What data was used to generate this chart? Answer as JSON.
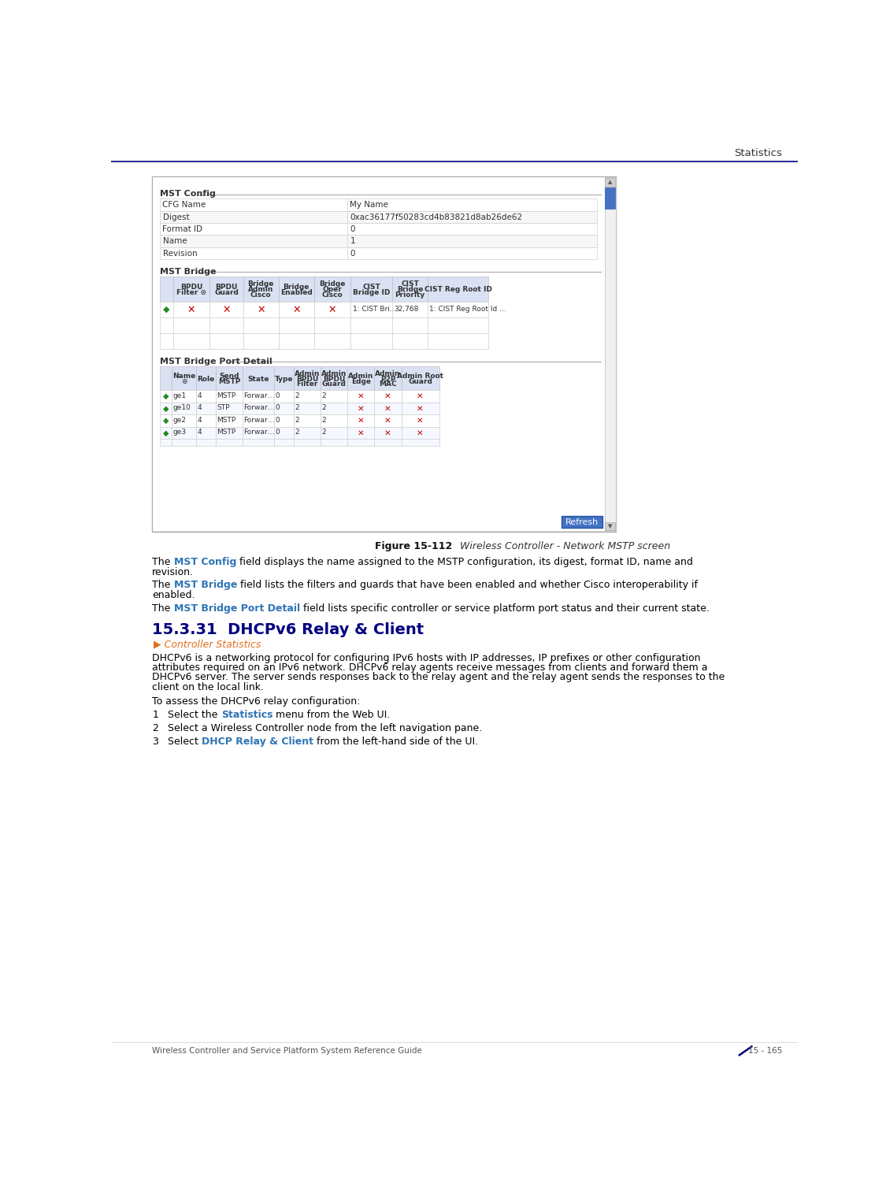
{
  "page_title": "Statistics",
  "footer_left": "Wireless Controller and Service Platform System Reference Guide",
  "footer_right": "15 - 165",
  "header_line_color": "#000080",
  "mst_config_label": "MST Config",
  "mst_config_rows": [
    [
      "CFG Name",
      "My Name"
    ],
    [
      "Digest",
      "0xac36177f50283cd4b83821d8ab26de62"
    ],
    [
      "Format ID",
      "0"
    ],
    [
      "Name",
      "1"
    ],
    [
      "Revision",
      "0"
    ]
  ],
  "mst_bridge_label": "MST Bridge",
  "mst_bridge_headers": [
    "",
    "BPDU\nFilter ⊙",
    "BPDU\nGuard",
    "Bridge\nAdmin\nCisco",
    "Bridge\nEnabled",
    "Bridge\nOper\nCisco",
    "CIST\nBridge ID",
    "CIST\nBridge\nPriority",
    "CIST Reg Root ID"
  ],
  "mst_bridge_row": [
    "green_arrow",
    "red_x",
    "red_x",
    "red_x",
    "red_x",
    "red_x",
    "1: CIST Bri…",
    "32,768",
    "1: CIST Reg Root Id …"
  ],
  "mst_bridge_port_label": "MST Bridge Port Detail",
  "mst_bridge_port_headers": [
    "Name\n⊙",
    "Role",
    "Send\nMSTP",
    "State",
    "Type",
    "Admin\nBPDU\nFilter",
    "Admin\nBPDU\nGuard",
    "Admin\nEdge",
    "Admin\nP2P\nMAC",
    "Admin Root\nGuard"
  ],
  "mst_bridge_port_rows": [
    [
      "ge1",
      "4",
      "MSTP",
      "Forwar…",
      "0",
      "2",
      "2",
      "red_x",
      "red_x",
      "red_x"
    ],
    [
      "ge10",
      "4",
      "STP",
      "Forwar…",
      "0",
      "2",
      "2",
      "red_x",
      "red_x",
      "red_x"
    ],
    [
      "ge2",
      "4",
      "MSTP",
      "Forwar…",
      "0",
      "2",
      "2",
      "red_x",
      "red_x",
      "red_x"
    ],
    [
      "ge3",
      "4",
      "MSTP",
      "Forwar…",
      "0",
      "2",
      "2",
      "red_x",
      "red_x",
      "red_x"
    ]
  ],
  "refresh_button": "Refresh",
  "figure_caption_bold": "Figure 15-112",
  "figure_caption_italic": "  Wireless Controller - Network MSTP screen",
  "body_paragraphs": [
    {
      "segments": [
        {
          "text": "The ",
          "color": "#000000",
          "bold": false
        },
        {
          "text": "MST Config",
          "color": "#2E74B5",
          "bold": true
        },
        {
          "text": " field displays the name assigned to the MSTP configuration, its digest, format ID, name and",
          "color": "#000000",
          "bold": false
        }
      ],
      "line2": "revision."
    },
    {
      "segments": [
        {
          "text": "The ",
          "color": "#000000",
          "bold": false
        },
        {
          "text": "MST Bridge",
          "color": "#2E74B5",
          "bold": true
        },
        {
          "text": " field lists the filters and guards that have been enabled and whether Cisco interoperability if",
          "color": "#000000",
          "bold": false
        }
      ],
      "line2": "enabled."
    },
    {
      "segments": [
        {
          "text": "The ",
          "color": "#000000",
          "bold": false
        },
        {
          "text": "MST Bridge Port Detail",
          "color": "#2E74B5",
          "bold": true
        },
        {
          "text": " field lists specific controller or service platform port status and their current state.",
          "color": "#000000",
          "bold": false
        }
      ],
      "line2": null
    }
  ],
  "section_heading": "15.3.31  DHCPv6 Relay & Client",
  "section_subheading": "▶ Controller Statistics",
  "section_subheading_color": "#E07020",
  "body_text1_lines": [
    "DHCPv6 is a networking protocol for configuring IPv6 hosts with IP addresses, IP prefixes or other configuration",
    "attributes required on an IPv6 network. DHCPv6 relay agents receive messages from clients and forward them a",
    "DHCPv6 server. The server sends responses back to the relay agent and the relay agent sends the responses to the",
    "client on the local link."
  ],
  "body_text2": "To assess the DHCPv6 relay configuration:",
  "steps": [
    {
      "num": "1",
      "segments": [
        {
          "text": "Select the ",
          "color": "#000000",
          "bold": false
        },
        {
          "text": "Statistics",
          "color": "#2E74B5",
          "bold": true
        },
        {
          "text": " menu from the Web UI.",
          "color": "#000000",
          "bold": false
        }
      ]
    },
    {
      "num": "2",
      "segments": [
        {
          "text": "Select a Wireless Controller node from the left navigation pane.",
          "color": "#000000",
          "bold": false
        }
      ]
    },
    {
      "num": "3",
      "segments": [
        {
          "text": "Select ",
          "color": "#000000",
          "bold": false
        },
        {
          "text": "DHCP Relay & Client",
          "color": "#2E74B5",
          "bold": true
        },
        {
          "text": " from the left-hand side of the UI.",
          "color": "#000000",
          "bold": false
        }
      ]
    }
  ],
  "bg_color": "#ffffff",
  "table_header_bg": "#D9E1F2",
  "table_border": "#c0c0c0",
  "section_color": "#000080",
  "scrollbar_bg": "#b8cce4",
  "scrollbar_thumb": "#4472c4"
}
